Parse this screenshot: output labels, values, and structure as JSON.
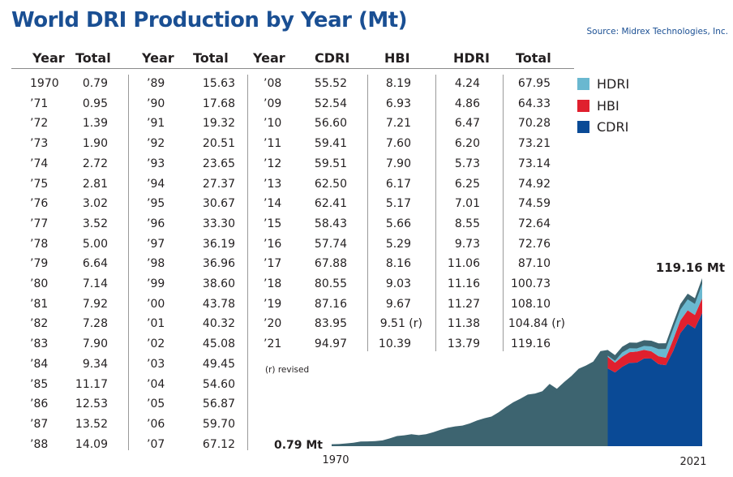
{
  "title": "World DRI Production by Year (Mt)",
  "source": "Source: Midrex Technologies, Inc.",
  "note": "(r) revised",
  "table": {
    "headers": [
      "Year",
      "Total",
      "Year",
      "Total",
      "Year",
      "CDRI",
      "HBI",
      "HDRI",
      "Total"
    ],
    "col1": [
      [
        "1970",
        "0.79"
      ],
      [
        "’71",
        "0.95"
      ],
      [
        "’72",
        "1.39"
      ],
      [
        "’73",
        "1.90"
      ],
      [
        "’74",
        "2.72"
      ],
      [
        "’75",
        "2.81"
      ],
      [
        "’76",
        "3.02"
      ],
      [
        "’77",
        "3.52"
      ],
      [
        "’78",
        "5.00"
      ],
      [
        "’79",
        "6.64"
      ],
      [
        "’80",
        "7.14"
      ],
      [
        "’81",
        "7.92"
      ],
      [
        "’82",
        "7.28"
      ],
      [
        "’83",
        "7.90"
      ],
      [
        "’84",
        "9.34"
      ],
      [
        "’85",
        "11.17"
      ],
      [
        "’86",
        "12.53"
      ],
      [
        "’87",
        "13.52"
      ],
      [
        "’88",
        "14.09"
      ]
    ],
    "col2": [
      [
        "’89",
        "15.63"
      ],
      [
        "’90",
        "17.68"
      ],
      [
        "’91",
        "19.32"
      ],
      [
        "’92",
        "20.51"
      ],
      [
        "’93",
        "23.65"
      ],
      [
        "’94",
        "27.37"
      ],
      [
        "’95",
        "30.67"
      ],
      [
        "’96",
        "33.30"
      ],
      [
        "’97",
        "36.19"
      ],
      [
        "’98",
        "36.96"
      ],
      [
        "’99",
        "38.60"
      ],
      [
        "’00",
        "43.78"
      ],
      [
        "’01",
        "40.32"
      ],
      [
        "’02",
        "45.08"
      ],
      [
        "’03",
        "49.45"
      ],
      [
        "’04",
        "54.60"
      ],
      [
        "’05",
        "56.87"
      ],
      [
        "’06",
        "59.70"
      ],
      [
        "’07",
        "67.12"
      ]
    ],
    "col3": [
      [
        "’08",
        "55.52",
        "8.19",
        "4.24",
        "67.95"
      ],
      [
        "’09",
        "52.54",
        "6.93",
        "4.86",
        "64.33"
      ],
      [
        "’10",
        "56.60",
        "7.21",
        "6.47",
        "70.28"
      ],
      [
        "’11",
        "59.41",
        "7.60",
        "6.20",
        "73.21"
      ],
      [
        "’12",
        "59.51",
        "7.90",
        "5.73",
        "73.14"
      ],
      [
        "’13",
        "62.50",
        "6.17",
        "6.25",
        "74.92"
      ],
      [
        "’14",
        "62.41",
        "5.17",
        "7.01",
        "74.59"
      ],
      [
        "’15",
        "58.43",
        "5.66",
        "8.55",
        "72.64"
      ],
      [
        "’16",
        "57.74",
        "5.29",
        "9.73",
        "72.76"
      ],
      [
        "’17",
        "67.88",
        "8.16",
        "11.06",
        "87.10"
      ],
      [
        "’18",
        "80.55",
        "9.03",
        "11.16",
        "100.73"
      ],
      [
        "’19",
        "87.16",
        "9.67",
        "11.27",
        "108.10"
      ],
      [
        "’20",
        "83.95",
        "9.51 (r)",
        "11.38",
        "104.84 (r)"
      ],
      [
        "’21",
        "94.97",
        "10.39",
        "13.79",
        "119.16"
      ]
    ]
  },
  "chart_data": {
    "type": "area",
    "stacked": true,
    "x_start": 1970,
    "x_end": 2021,
    "xtick_labels": [
      "1970",
      "2021"
    ],
    "legend_placement": "right",
    "legend": [
      "HDRI",
      "HBI",
      "CDRI"
    ],
    "colors": {
      "CDRI": "#0a4a96",
      "HBI": "#e0202e",
      "HDRI": "#6ab8d0",
      "pre2008": "#3d6470",
      "title": "#1a4f93"
    },
    "annotations": {
      "start": "0.79 Mt",
      "end": "119.16 Mt"
    },
    "totals": [
      0.79,
      0.95,
      1.39,
      1.9,
      2.72,
      2.81,
      3.02,
      3.52,
      5.0,
      6.64,
      7.14,
      7.92,
      7.28,
      7.9,
      9.34,
      11.17,
      12.53,
      13.52,
      14.09,
      15.63,
      17.68,
      19.32,
      20.51,
      23.65,
      27.37,
      30.67,
      33.3,
      36.19,
      36.96,
      38.6,
      43.78,
      40.32,
      45.08,
      49.45,
      54.6,
      56.87,
      59.7,
      67.12,
      67.95,
      64.33,
      70.28,
      73.21,
      73.14,
      74.92,
      74.59,
      72.64,
      72.76,
      87.1,
      100.73,
      108.1,
      104.84,
      119.16
    ],
    "series": [
      {
        "name": "CDRI",
        "years": [
          2008,
          2009,
          2010,
          2011,
          2012,
          2013,
          2014,
          2015,
          2016,
          2017,
          2018,
          2019,
          2020,
          2021
        ],
        "values": [
          55.52,
          52.54,
          56.6,
          59.41,
          59.51,
          62.5,
          62.41,
          58.43,
          57.74,
          67.88,
          80.55,
          87.16,
          83.95,
          94.97
        ]
      },
      {
        "name": "HBI",
        "years": [
          2008,
          2009,
          2010,
          2011,
          2012,
          2013,
          2014,
          2015,
          2016,
          2017,
          2018,
          2019,
          2020,
          2021
        ],
        "values": [
          8.19,
          6.93,
          7.21,
          7.6,
          7.9,
          6.17,
          5.17,
          5.66,
          5.29,
          8.16,
          9.03,
          9.67,
          9.51,
          10.39
        ]
      },
      {
        "name": "HDRI",
        "years": [
          2008,
          2009,
          2010,
          2011,
          2012,
          2013,
          2014,
          2015,
          2016,
          2017,
          2018,
          2019,
          2020,
          2021
        ],
        "values": [
          4.24,
          4.86,
          6.47,
          6.2,
          5.73,
          6.25,
          7.01,
          8.55,
          9.73,
          11.06,
          11.16,
          11.27,
          11.38,
          13.79
        ]
      }
    ]
  }
}
